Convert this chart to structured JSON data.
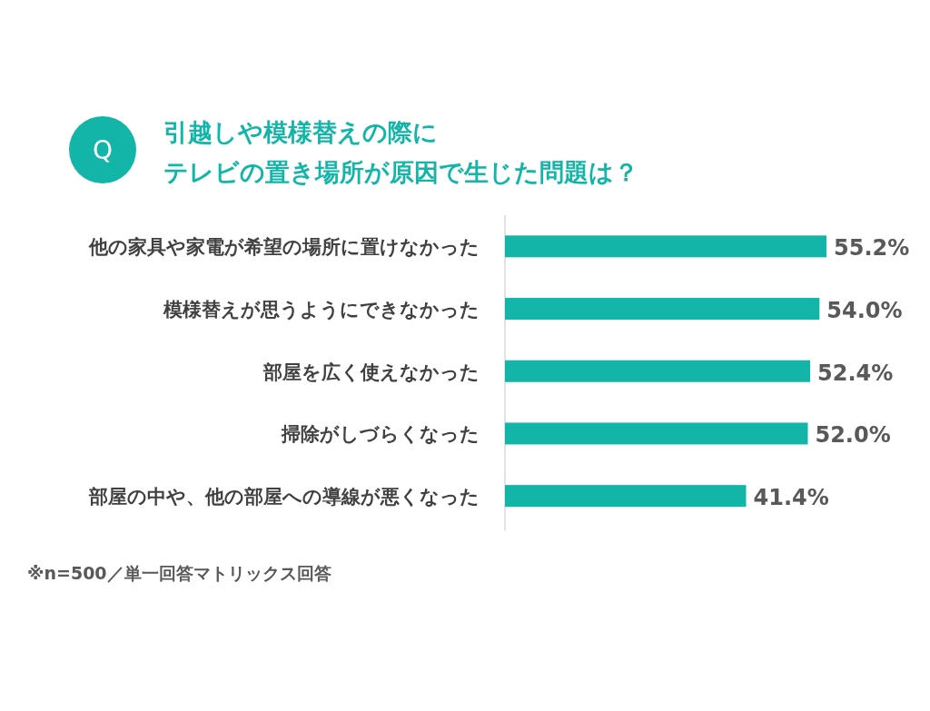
{
  "chart_data": {
    "type": "bar",
    "orientation": "horizontal",
    "title": "引越しや模様替えの際に",
    "subtitle": "テレビの置き場所が原因で生じた問題は？",
    "value_labels": [
      "55.2%",
      "54.0%",
      "52.4%",
      "52.0%",
      "41.4%"
    ],
    "categories": [
      "他の家具や家電が希望の場所に置けなかった",
      "模様替えが思うようにできなかった",
      "部屋を広く使えなかった",
      "掃除がしづらくなった",
      "部屋の中や、他の部屋への導線が悪くなった"
    ],
    "values": [
      55.2,
      54.0,
      52.4,
      52.0,
      41.4
    ],
    "color": "#13b5a8",
    "annotations": [
      "Q",
      "※n=500／単一回答マトリックス回答"
    ]
  }
}
